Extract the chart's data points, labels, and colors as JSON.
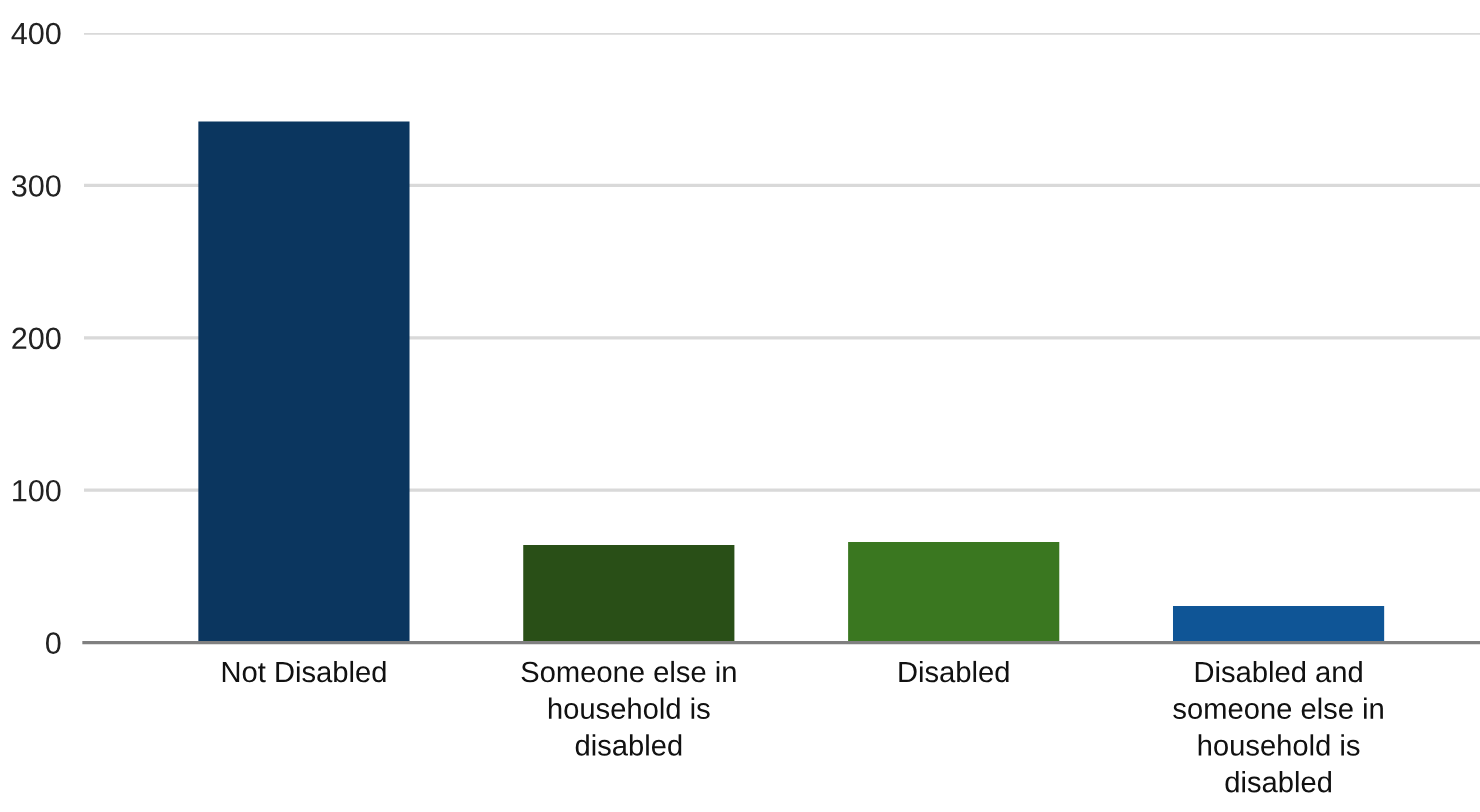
{
  "chart_data": {
    "type": "bar",
    "categories": [
      "Not Disabled",
      "Someone else in household is disabled",
      "Disabled",
      "Disabled and someone else in household is disabled"
    ],
    "values": [
      342,
      64,
      66,
      24
    ],
    "colors": [
      "#0b365f",
      "#294f17",
      "#3a7720",
      "#0f5596"
    ],
    "ylim": [
      0,
      400
    ],
    "yticks": [
      0,
      100,
      200,
      300,
      400
    ],
    "grid": "y"
  }
}
